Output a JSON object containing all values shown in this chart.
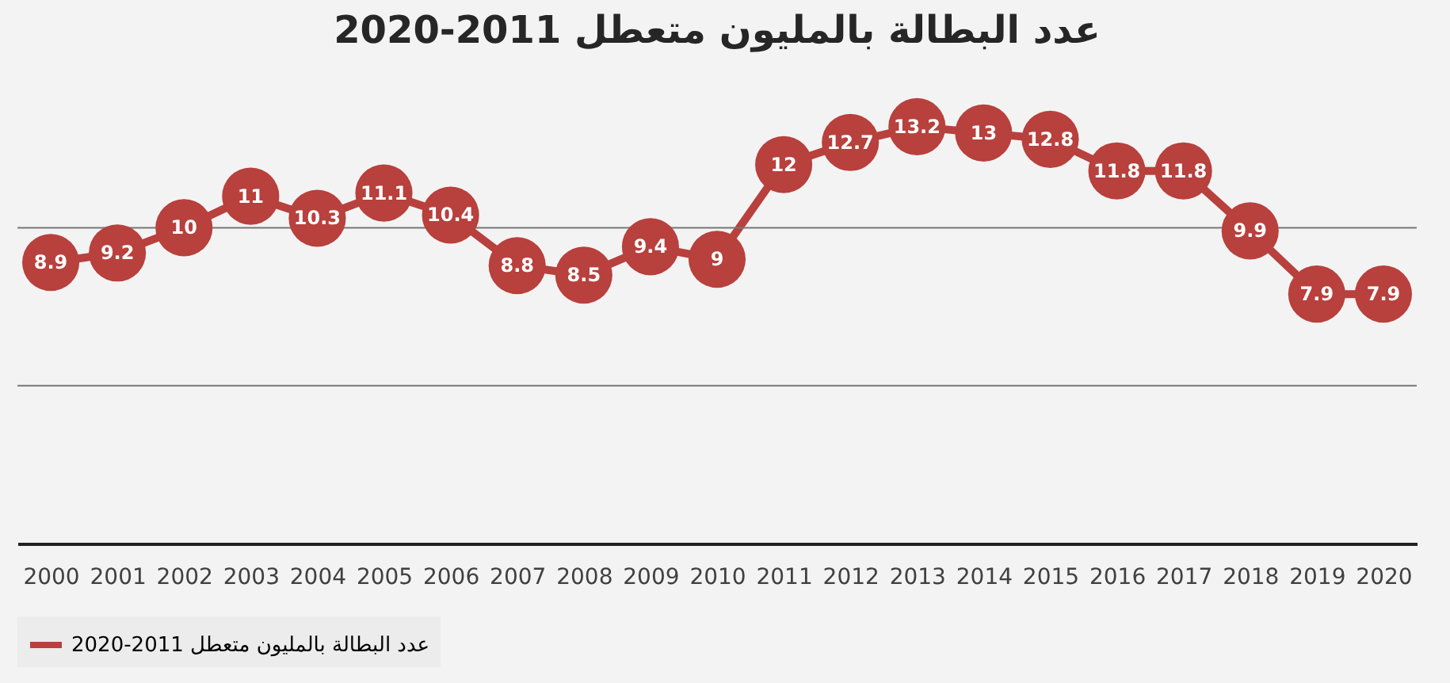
{
  "chart_data": {
    "type": "line",
    "title": "عدد البطالة بالمليون متعطل 2011-2020",
    "categories": [
      "2000",
      "2001",
      "2002",
      "2003",
      "2004",
      "2005",
      "2006",
      "2007",
      "2008",
      "2009",
      "2010",
      "2011",
      "2012",
      "2013",
      "2014",
      "2015",
      "2016",
      "2017",
      "2018",
      "2019",
      "2020"
    ],
    "series": [
      {
        "name": "عدد البطالة بالمليون متعطل 2011-2020",
        "color": "#b8403d",
        "values": [
          8.9,
          9.2,
          10,
          11,
          10.3,
          11.1,
          10.4,
          8.8,
          8.5,
          9.4,
          9,
          12,
          12.7,
          13.2,
          13,
          12.8,
          11.8,
          11.8,
          9.9,
          7.9,
          7.9
        ]
      }
    ],
    "ref_lines": [
      {
        "axis": "y",
        "value": 5,
        "color": "#777777"
      },
      {
        "axis": "y",
        "value": 10,
        "color": "#777777"
      }
    ],
    "tick_labels": "x",
    "legend": "bottom",
    "marker": "circle",
    "line_style": "solid",
    "data_labels": true
  }
}
